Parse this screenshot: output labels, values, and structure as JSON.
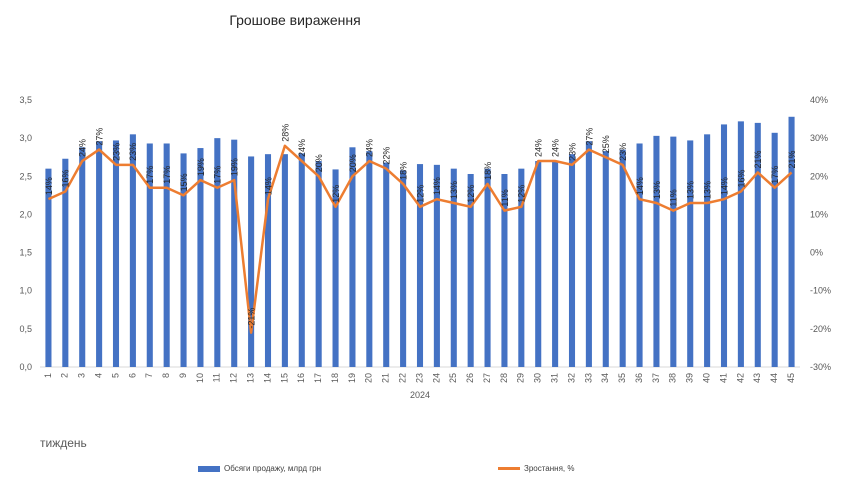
{
  "chart_data": {
    "type": "bar",
    "title": "Грошове вираження",
    "xlabel": "2024",
    "period_label": "тиждень",
    "categories": [
      "1",
      "2",
      "3",
      "4",
      "5",
      "6",
      "7",
      "8",
      "9",
      "10",
      "11",
      "12",
      "13",
      "14",
      "15",
      "16",
      "17",
      "18",
      "19",
      "20",
      "21",
      "22",
      "23",
      "24",
      "25",
      "26",
      "27",
      "28",
      "29",
      "30",
      "31",
      "32",
      "33",
      "34",
      "35",
      "36",
      "37",
      "38",
      "39",
      "40",
      "41",
      "42",
      "43",
      "44",
      "45"
    ],
    "series": [
      {
        "name": "Обсяги продажу, млрд грн",
        "type": "bar",
        "axis": "left",
        "color": "#4472c4",
        "values": [
          2.6,
          2.73,
          2.88,
          2.96,
          2.97,
          3.05,
          2.93,
          2.93,
          2.8,
          2.87,
          3.0,
          2.98,
          2.76,
          2.79,
          2.79,
          2.8,
          2.7,
          2.59,
          2.88,
          2.83,
          2.68,
          2.58,
          2.66,
          2.65,
          2.6,
          2.53,
          2.6,
          2.53,
          2.6,
          2.7,
          2.7,
          2.79,
          2.96,
          2.83,
          2.85,
          2.93,
          3.03,
          3.02,
          2.97,
          3.05,
          3.18,
          3.22,
          3.2,
          3.07,
          3.28
        ]
      },
      {
        "name": "Зростання, %",
        "type": "line",
        "axis": "right",
        "color": "#ed7d31",
        "values": [
          14,
          16,
          24,
          27,
          23,
          23,
          17,
          17,
          15,
          19,
          17,
          19,
          -21,
          14,
          28,
          24,
          20,
          12,
          20,
          24,
          22,
          18,
          12,
          14,
          13,
          12,
          18,
          11,
          12,
          24,
          24,
          23,
          27,
          25,
          23,
          14,
          13,
          11,
          13,
          13,
          14,
          16,
          21,
          17,
          21
        ],
        "labels": [
          "14%",
          "16%",
          "24%",
          "27%",
          "23%",
          "23%",
          "17%",
          "17%",
          "15%",
          "19%",
          "17%",
          "19%",
          "-21%",
          "14%",
          "28%",
          "24%",
          "20%",
          "12%",
          "20%",
          "24%",
          "22%",
          "18%",
          "12%",
          "14%",
          "13%",
          "12%",
          "18%",
          "11%",
          "12%",
          "24%",
          "24%",
          "23%",
          "27%",
          "25%",
          "23%",
          "14%",
          "13%",
          "11%",
          "13%",
          "13%",
          "14%",
          "16%",
          "21%",
          "17%",
          "21%"
        ]
      }
    ],
    "yaxis_left": {
      "min": 0,
      "max": 3.5,
      "step": 0.5,
      "ticks": [
        "0,0",
        "0,5",
        "1,0",
        "1,5",
        "2,0",
        "2,5",
        "3,0",
        "3,5"
      ]
    },
    "yaxis_right": {
      "min": -30,
      "max": 40,
      "step": 10,
      "ticks": [
        "-30%",
        "-20%",
        "-10%",
        "0%",
        "10%",
        "20%",
        "30%",
        "40%"
      ]
    },
    "grid": false,
    "legend": "bottom"
  }
}
